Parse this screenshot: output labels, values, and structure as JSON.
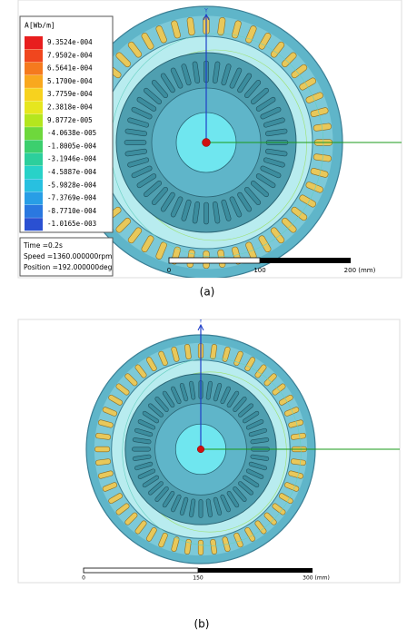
{
  "panel_a": {
    "legend": {
      "title": "A[Wb/m]",
      "values": [
        "9.3524e-004",
        "7.9502e-004",
        "6.5641e-004",
        "5.1700e-004",
        "3.7759e-004",
        "2.3818e-004",
        "9.8772e-005",
        "-4.0638e-005",
        "-1.8005e-004",
        "-3.1946e-004",
        "-4.5887e-004",
        "-5.9828e-004",
        "-7.3769e-004",
        "-8.7710e-004",
        "-1.0165e-003"
      ]
    },
    "info": {
      "time": "Time   =0.2s",
      "speed": "Speed  =1360.000000rpm",
      "position": "Position =192.000000deg"
    },
    "axis_label": "Y",
    "scale": {
      "start": "0",
      "mid": "100",
      "end": "200 (mm)"
    },
    "caption": "(a)"
  },
  "panel_b": {
    "axis_label": "Y",
    "scale": {
      "start": "0",
      "mid": "150",
      "end": "300 (mm)"
    },
    "caption": "(b)"
  }
}
